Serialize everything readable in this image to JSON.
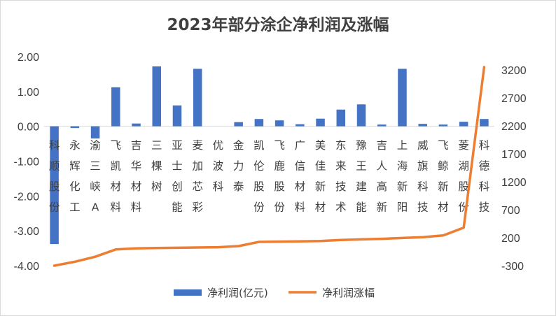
{
  "chart_data": {
    "type": "bar",
    "title": "2023年部分涂企净利润及涨幅",
    "categories": [
      "科顺股份",
      "永辉化工",
      "渝三峡A",
      "飞凯材料",
      "吉华材料",
      "三棵树",
      "亚士创能",
      "麦加芯彩",
      "优波科",
      "金力泰",
      "凯伦股份",
      "飞鹿股份",
      "广信材料",
      "美佳新材",
      "东来技术",
      "豫王建能",
      "吉人高新",
      "上海新阳",
      "威旗科技",
      "飞鲸新材",
      "菱湖股份",
      "科德科技"
    ],
    "series": [
      {
        "name": "净利润(亿元)",
        "type": "bar",
        "axis": "left",
        "color": "#4472c4",
        "values": [
          -3.38,
          -0.05,
          -0.35,
          1.12,
          0.08,
          1.72,
          0.6,
          1.65,
          0.0,
          0.12,
          0.21,
          0.17,
          0.06,
          0.22,
          0.48,
          0.63,
          0.05,
          1.65,
          0.07,
          0.05,
          0.13,
          0.21
        ]
      },
      {
        "name": "净利润涨幅",
        "type": "line",
        "axis": "right",
        "color": "#ed7d31",
        "values": [
          -300,
          -230,
          -140,
          -10,
          10,
          15,
          20,
          25,
          30,
          50,
          125,
          130,
          135,
          140,
          160,
          170,
          180,
          195,
          210,
          240,
          380,
          3250
        ]
      }
    ],
    "y_left": {
      "min": -4,
      "max": 2,
      "ticks": [
        "2.00",
        "1.00",
        "0.00",
        "-1.00",
        "-2.00",
        "-3.00",
        "-4.00"
      ]
    },
    "y_right": {
      "min": -300,
      "max": 3450,
      "ticks": [
        "3200",
        "2700",
        "2200",
        "1700",
        "1200",
        "700",
        "200",
        "-300"
      ]
    },
    "grid": false,
    "legend": "bottom"
  }
}
